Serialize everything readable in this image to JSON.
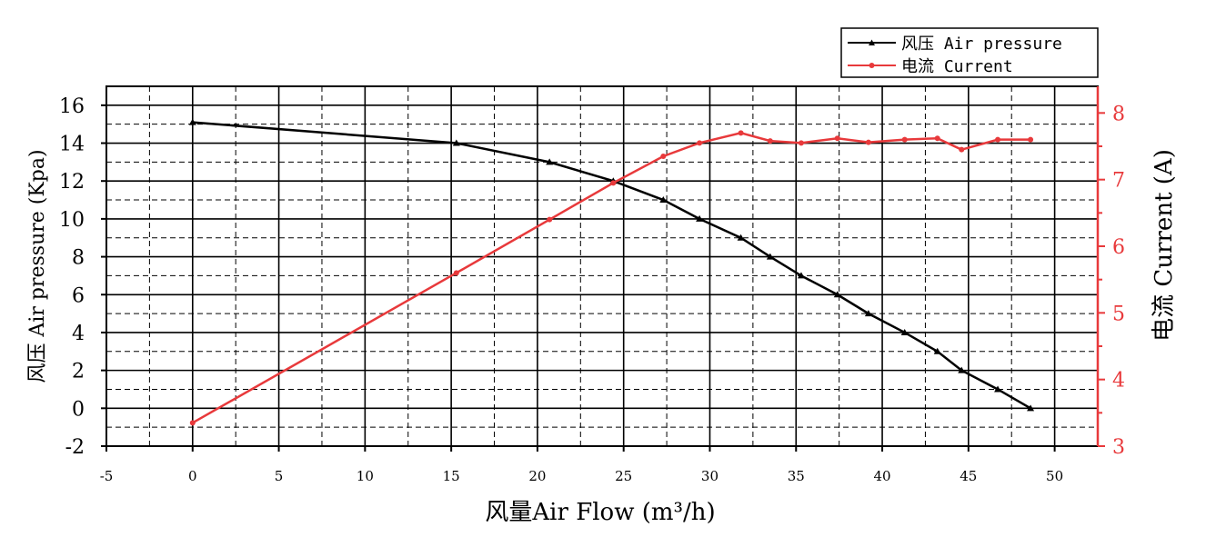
{
  "chart_data": {
    "type": "line",
    "xlabel": "风量Air Flow (m³/h)",
    "ylabel": "风压 Air pressure (Kpa)",
    "y2label": "电流 Current (A)",
    "xlim": [
      -5,
      52.5
    ],
    "ylim": [
      -2,
      17
    ],
    "y2lim": [
      3,
      8.4
    ],
    "x_ticks": [
      "-5",
      "0",
      "5",
      "10",
      "15",
      "20",
      "25",
      "30",
      "35",
      "40",
      "45",
      "50"
    ],
    "y_ticks": [
      "-2",
      "0",
      "2",
      "4",
      "6",
      "8",
      "10",
      "12",
      "14",
      "16"
    ],
    "y2_ticks": [
      "3",
      "4",
      "5",
      "6",
      "7",
      "8"
    ],
    "grid": true,
    "legend": "top-right, outside plot",
    "series": [
      {
        "name": "风压 Air pressure",
        "axis": "left",
        "color": "#000000",
        "marker": "triangle",
        "x": [
          0,
          15.3,
          20.7,
          24.4,
          27.3,
          29.4,
          31.8,
          33.5,
          35.3,
          37.4,
          39.2,
          41.3,
          43.2,
          44.6,
          46.7,
          48.6
        ],
        "y": [
          15.1,
          14.0,
          13.0,
          12.0,
          11.0,
          10.0,
          9.0,
          8.0,
          7.0,
          6.0,
          5.0,
          4.0,
          3.0,
          2.0,
          1.0,
          0.0
        ]
      },
      {
        "name": "电流 Current",
        "axis": "right",
        "color": "#e8393b",
        "marker": "circle",
        "x": [
          0,
          15.3,
          20.7,
          24.4,
          27.3,
          29.4,
          31.8,
          33.5,
          35.3,
          37.4,
          39.2,
          41.3,
          43.2,
          44.6,
          46.7,
          48.6
        ],
        "y": [
          3.35,
          5.6,
          6.4,
          6.95,
          7.35,
          7.55,
          7.7,
          7.58,
          7.55,
          7.62,
          7.56,
          7.6,
          7.62,
          7.45,
          7.6,
          7.6
        ]
      }
    ]
  }
}
